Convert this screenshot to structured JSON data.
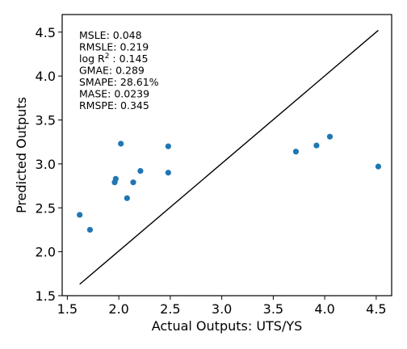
{
  "chart_data": {
    "type": "scatter",
    "xlabel": "Actual Outputs: UTS/YS",
    "ylabel": "Predicted Outputs",
    "xlim": [
      1.45,
      4.65
    ],
    "ylim": [
      1.5,
      4.7
    ],
    "xticks": [
      1.5,
      2.0,
      2.5,
      3.0,
      3.5,
      4.0,
      4.5
    ],
    "yticks": [
      1.5,
      2.0,
      2.5,
      3.0,
      3.5,
      4.0,
      4.5
    ],
    "xtick_labels": [
      "1.5",
      "2.0",
      "2.5",
      "3.0",
      "3.5",
      "4.0",
      "4.5"
    ],
    "ytick_labels": [
      "1.5",
      "2.0",
      "2.5",
      "3.0",
      "3.5",
      "4.0",
      "4.5"
    ],
    "point_color": "#1f77b4",
    "reference_line": {
      "from": [
        1.62,
        1.63
      ],
      "to": [
        4.52,
        4.52
      ]
    },
    "points": [
      {
        "x": 1.62,
        "y": 2.42
      },
      {
        "x": 1.72,
        "y": 2.25
      },
      {
        "x": 1.96,
        "y": 2.79
      },
      {
        "x": 1.97,
        "y": 2.83
      },
      {
        "x": 2.02,
        "y": 3.23
      },
      {
        "x": 2.08,
        "y": 2.61
      },
      {
        "x": 2.14,
        "y": 2.79
      },
      {
        "x": 2.21,
        "y": 2.92
      },
      {
        "x": 2.48,
        "y": 3.2
      },
      {
        "x": 2.48,
        "y": 2.9
      },
      {
        "x": 3.72,
        "y": 3.14
      },
      {
        "x": 3.92,
        "y": 3.21
      },
      {
        "x": 4.05,
        "y": 3.31
      },
      {
        "x": 4.52,
        "y": 2.97
      }
    ],
    "metrics": [
      {
        "pre": "MSLE: 0.048",
        "sup": "",
        "post": ""
      },
      {
        "pre": "RMSLE: 0.219",
        "sup": "",
        "post": ""
      },
      {
        "pre": "log R",
        "sup": "2",
        "post": " : 0.145"
      },
      {
        "pre": "GMAE: 0.289",
        "sup": "",
        "post": ""
      },
      {
        "pre": "SMAPE: 28.61%",
        "sup": "",
        "post": ""
      },
      {
        "pre": "MASE: 0.0239",
        "sup": "",
        "post": ""
      },
      {
        "pre": "RMSPE: 0.345",
        "sup": "",
        "post": ""
      }
    ]
  }
}
